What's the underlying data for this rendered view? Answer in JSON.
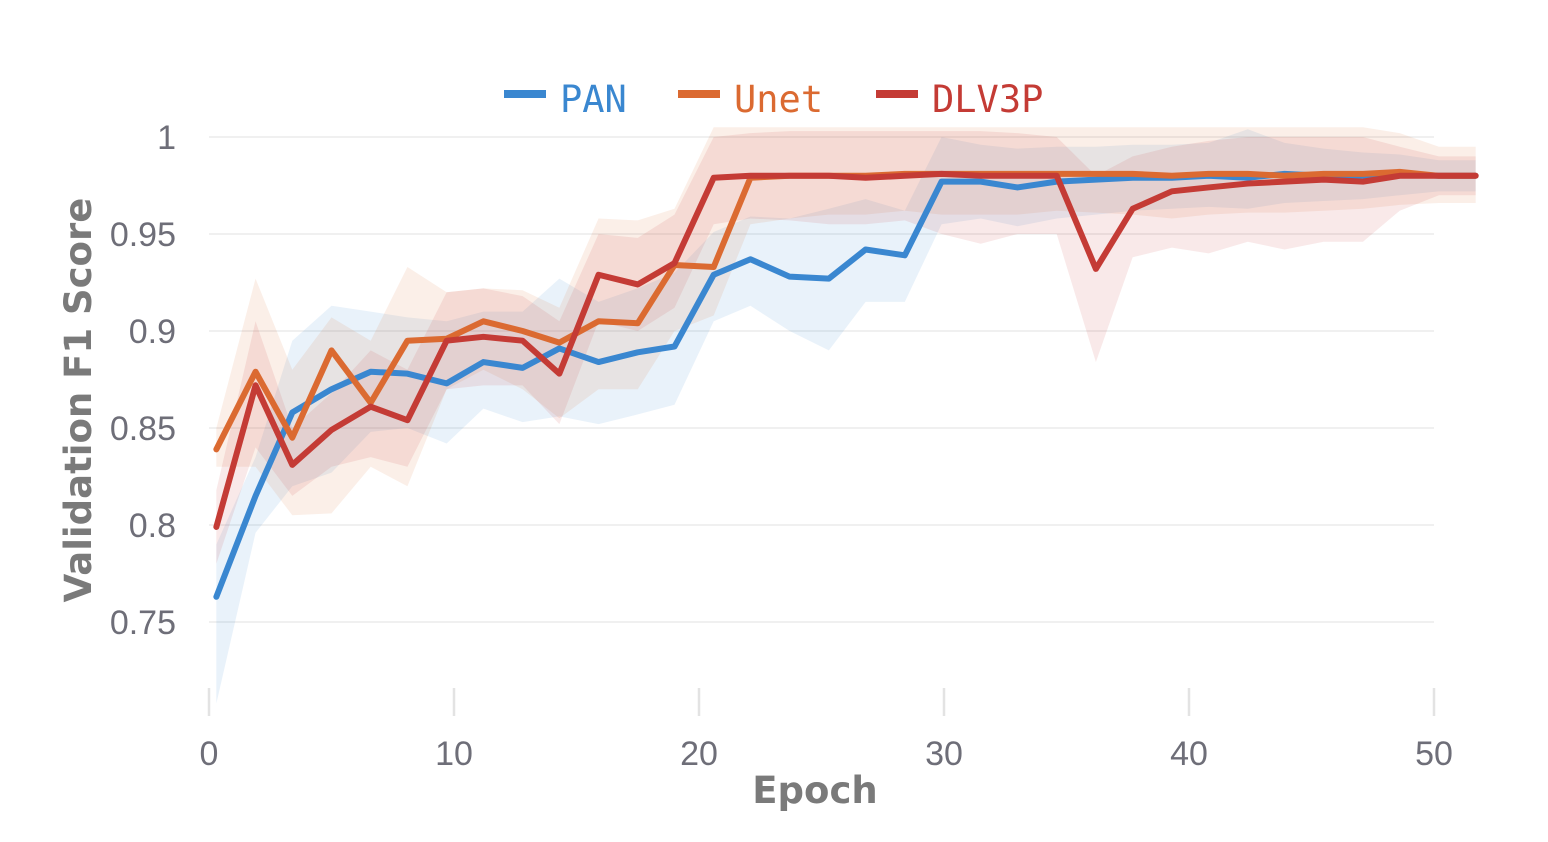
{
  "chart_data": {
    "type": "line",
    "title": "",
    "xlabel": "Epoch",
    "ylabel": "Validation F1 Score",
    "xlim": [
      0,
      52
    ],
    "ylim": [
      0.705,
      1.005
    ],
    "x_ticks": [
      0,
      10,
      20,
      30,
      40,
      50
    ],
    "x_tick_labels": [
      "0",
      "10",
      "20",
      "30",
      "40",
      "50"
    ],
    "y_ticks": [
      0.75,
      0.8,
      0.85,
      0.9,
      0.95,
      1
    ],
    "y_tick_labels": [
      "0.75",
      "0.8",
      "0.85",
      "0.9",
      "0.95",
      "1"
    ],
    "grid": true,
    "legend_position": "top-center",
    "x": [
      0.3,
      1.9,
      3.4,
      5.0,
      6.6,
      8.1,
      9.7,
      11.2,
      12.8,
      14.3,
      15.9,
      17.5,
      19.0,
      20.6,
      22.1,
      23.7,
      25.3,
      26.8,
      28.4,
      29.9,
      31.5,
      33.0,
      34.6,
      36.2,
      37.7,
      39.3,
      40.8,
      42.4,
      43.9,
      45.5,
      47.1,
      48.6,
      50.2,
      51.7
    ],
    "series": [
      {
        "name": "PAN",
        "color": "#3a87d0",
        "values": [
          0.763,
          0.815,
          0.858,
          0.87,
          0.879,
          0.878,
          0.873,
          0.884,
          0.881,
          0.891,
          0.884,
          0.889,
          0.892,
          0.929,
          0.937,
          0.928,
          0.927,
          0.942,
          0.939,
          0.977,
          0.977,
          0.974,
          0.977,
          0.978,
          0.979,
          0.979,
          0.98,
          0.979,
          0.981,
          0.98,
          0.98,
          0.981,
          0.98,
          0.98
        ],
        "lower": [
          0.708,
          0.796,
          0.82,
          0.827,
          0.848,
          0.85,
          0.842,
          0.86,
          0.853,
          0.856,
          0.852,
          0.857,
          0.862,
          0.905,
          0.913,
          0.9,
          0.89,
          0.915,
          0.915,
          0.955,
          0.958,
          0.954,
          0.958,
          0.96,
          0.962,
          0.963,
          0.964,
          0.963,
          0.966,
          0.967,
          0.968,
          0.97,
          0.972,
          0.972
        ],
        "upper": [
          0.79,
          0.835,
          0.895,
          0.913,
          0.91,
          0.907,
          0.905,
          0.91,
          0.91,
          0.927,
          0.915,
          0.922,
          0.93,
          0.951,
          0.959,
          0.958,
          0.963,
          0.968,
          0.962,
          1.0,
          0.996,
          0.994,
          0.995,
          0.995,
          0.996,
          0.996,
          0.997,
          1.004,
          0.997,
          0.994,
          0.992,
          0.991,
          0.988,
          0.988
        ]
      },
      {
        "name": "Unet",
        "color": "#db6a31",
        "values": [
          0.839,
          0.879,
          0.845,
          0.89,
          0.863,
          0.895,
          0.896,
          0.905,
          0.9,
          0.894,
          0.905,
          0.904,
          0.934,
          0.933,
          0.979,
          0.98,
          0.98,
          0.98,
          0.981,
          0.981,
          0.981,
          0.981,
          0.981,
          0.981,
          0.981,
          0.98,
          0.981,
          0.981,
          0.98,
          0.981,
          0.981,
          0.982,
          0.98,
          0.98
        ],
        "lower": [
          0.83,
          0.83,
          0.805,
          0.806,
          0.83,
          0.82,
          0.87,
          0.88,
          0.87,
          0.855,
          0.87,
          0.87,
          0.9,
          0.908,
          0.955,
          0.958,
          0.96,
          0.96,
          0.962,
          0.96,
          0.96,
          0.96,
          0.962,
          0.961,
          0.96,
          0.958,
          0.96,
          0.961,
          0.961,
          0.962,
          0.963,
          0.965,
          0.966,
          0.966
        ],
        "upper": [
          0.85,
          0.927,
          0.88,
          0.907,
          0.895,
          0.933,
          0.92,
          0.922,
          0.921,
          0.912,
          0.958,
          0.957,
          0.963,
          1.005,
          1.005,
          1.005,
          1.005,
          1.005,
          1.005,
          1.005,
          1.005,
          1.005,
          1.005,
          1.005,
          1.005,
          1.005,
          1.005,
          1.005,
          1.005,
          1.005,
          1.005,
          1.002,
          0.995,
          0.995
        ]
      },
      {
        "name": "DLV3P",
        "color": "#c43b35",
        "values": [
          0.799,
          0.872,
          0.831,
          0.849,
          0.861,
          0.854,
          0.895,
          0.897,
          0.895,
          0.878,
          0.929,
          0.924,
          0.935,
          0.979,
          0.98,
          0.98,
          0.98,
          0.979,
          0.98,
          0.981,
          0.98,
          0.98,
          0.98,
          0.932,
          0.963,
          0.972,
          0.974,
          0.976,
          0.977,
          0.978,
          0.977,
          0.98,
          0.98,
          0.98
        ],
        "lower": [
          0.78,
          0.84,
          0.815,
          0.83,
          0.835,
          0.83,
          0.87,
          0.872,
          0.872,
          0.852,
          0.905,
          0.9,
          0.912,
          0.955,
          0.958,
          0.957,
          0.955,
          0.955,
          0.957,
          0.95,
          0.945,
          0.95,
          0.95,
          0.884,
          0.938,
          0.943,
          0.94,
          0.946,
          0.942,
          0.946,
          0.946,
          0.962,
          0.97,
          0.97
        ],
        "upper": [
          0.818,
          0.905,
          0.85,
          0.868,
          0.89,
          0.88,
          0.92,
          0.922,
          0.918,
          0.905,
          0.95,
          0.948,
          0.96,
          1.0,
          1.002,
          1.003,
          1.003,
          1.003,
          1.003,
          1.003,
          1.003,
          1.002,
          1.0,
          0.98,
          0.99,
          0.995,
          0.998,
          1.0,
          1.0,
          1.0,
          1.0,
          0.995,
          0.99,
          0.99
        ]
      }
    ]
  }
}
